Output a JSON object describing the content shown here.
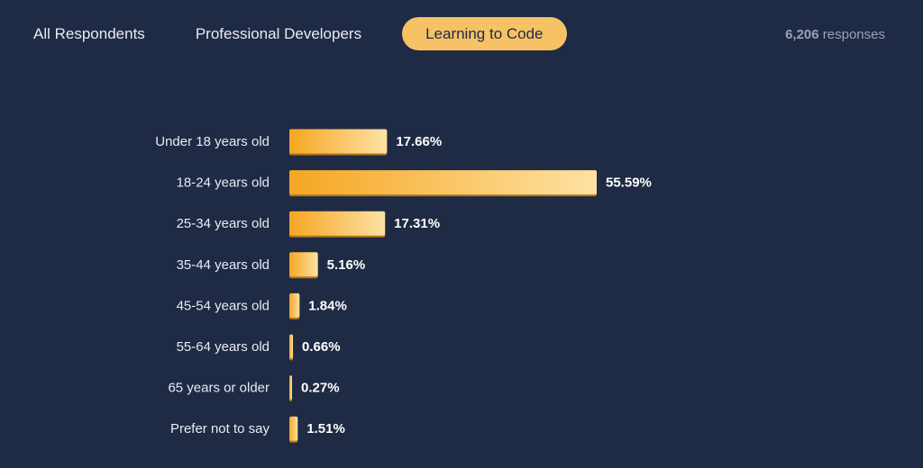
{
  "tabs": [
    {
      "label": "All Respondents",
      "active": false
    },
    {
      "label": "Professional Developers",
      "active": false
    },
    {
      "label": "Learning to Code",
      "active": true
    }
  ],
  "responses": {
    "count": "6,206",
    "suffix": "responses"
  },
  "colors": {
    "background": "#1f2a44",
    "bar_start": "#f6a623",
    "bar_end": "#fde2a4",
    "bar_shadow": "#b37816",
    "active_tab": "#f6c265"
  },
  "chart_data": {
    "type": "bar",
    "orientation": "horizontal",
    "categories": [
      "Under 18 years old",
      "18-24 years old",
      "25-34 years old",
      "35-44 years old",
      "45-54 years old",
      "55-64 years old",
      "65 years or older",
      "Prefer not to say"
    ],
    "values": [
      17.66,
      55.59,
      17.31,
      5.16,
      1.84,
      0.66,
      0.27,
      1.51
    ],
    "value_labels": [
      "17.66%",
      "55.59%",
      "17.31%",
      "5.16%",
      "1.84%",
      "0.66%",
      "0.27%",
      "1.51%"
    ],
    "unit": "%",
    "xlim": [
      0,
      55.59
    ]
  }
}
